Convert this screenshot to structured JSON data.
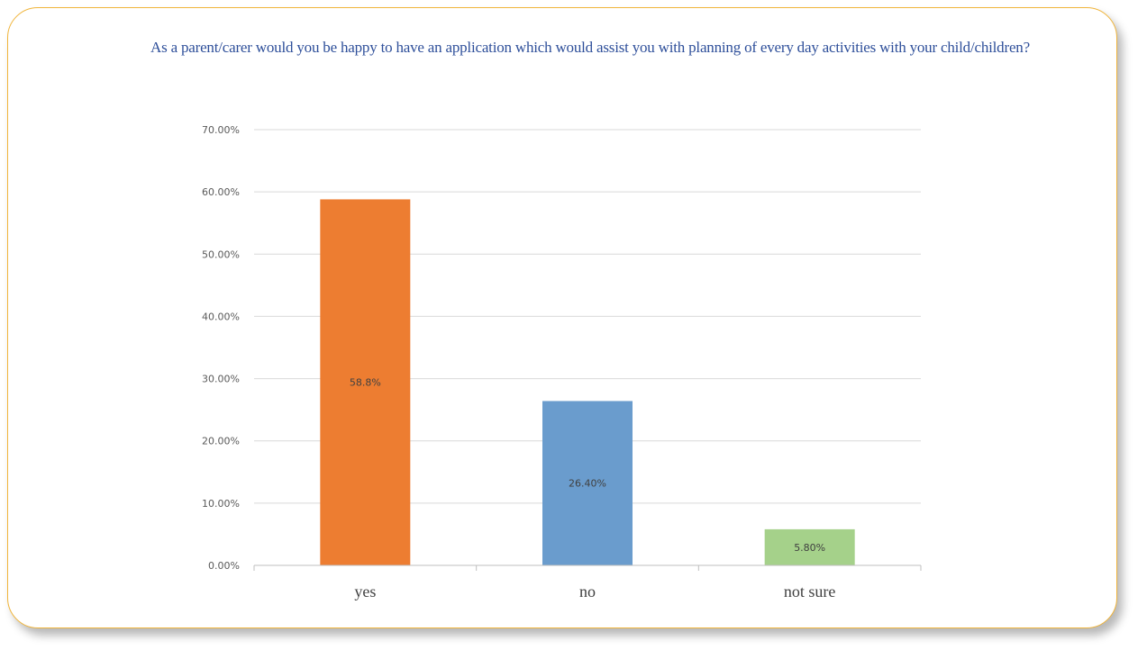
{
  "chart_data": {
    "type": "bar",
    "title": "As a parent/carer would you be happy to have an application which would assist you with planning of every day activities with your child/children?",
    "xlabel": "",
    "ylabel": "",
    "categories": [
      "yes",
      "no",
      "not sure"
    ],
    "values": [
      58.8,
      26.4,
      5.8
    ],
    "data_labels": [
      "58.8%",
      "26.40%",
      "5.80%"
    ],
    "bar_colors": [
      "#ed7d31",
      "#6a9ccd",
      "#a5d18a"
    ],
    "ylim": [
      0,
      70
    ],
    "yticks": [
      0,
      10,
      20,
      30,
      40,
      50,
      60,
      70
    ],
    "ytick_labels": [
      "0.00%",
      "10.00%",
      "20.00%",
      "30.00%",
      "40.00%",
      "50.00%",
      "60.00%",
      "70.00%"
    ],
    "grid": true,
    "legend": "none"
  },
  "colors": {
    "frame_border": "#f0b43a",
    "title_color": "#2e4f9a",
    "gridline": "#d9d9d9"
  }
}
